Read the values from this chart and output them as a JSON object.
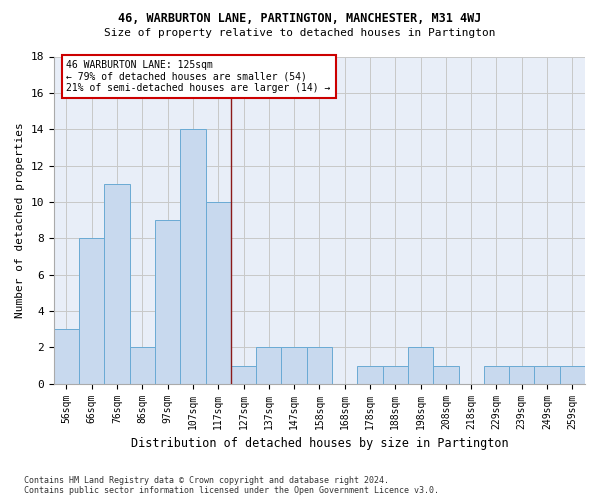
{
  "title1": "46, WARBURTON LANE, PARTINGTON, MANCHESTER, M31 4WJ",
  "title2": "Size of property relative to detached houses in Partington",
  "xlabel": "Distribution of detached houses by size in Partington",
  "ylabel": "Number of detached properties",
  "bar_labels": [
    "56sqm",
    "66sqm",
    "76sqm",
    "86sqm",
    "97sqm",
    "107sqm",
    "117sqm",
    "127sqm",
    "137sqm",
    "147sqm",
    "158sqm",
    "168sqm",
    "178sqm",
    "188sqm",
    "198sqm",
    "208sqm",
    "218sqm",
    "229sqm",
    "239sqm",
    "249sqm",
    "259sqm"
  ],
  "bar_values": [
    3,
    8,
    11,
    2,
    9,
    14,
    10,
    1,
    2,
    2,
    2,
    0,
    1,
    1,
    2,
    1,
    0,
    1,
    1,
    1,
    1
  ],
  "bar_color": "#c8d9ee",
  "bar_edge_color": "#6aaad4",
  "grid_color": "#c8c8c8",
  "bg_color": "#e8eef8",
  "vline_x_idx": 6,
  "vline_color": "#8b1a1a",
  "annotation_text": "46 WARBURTON LANE: 125sqm\n← 79% of detached houses are smaller (54)\n21% of semi-detached houses are larger (14) →",
  "annotation_box_color": "#ffffff",
  "annotation_box_edge": "#cc0000",
  "ylim": [
    0,
    18
  ],
  "yticks": [
    0,
    2,
    4,
    6,
    8,
    10,
    12,
    14,
    16,
    18
  ],
  "footnote": "Contains HM Land Registry data © Crown copyright and database right 2024.\nContains public sector information licensed under the Open Government Licence v3.0."
}
